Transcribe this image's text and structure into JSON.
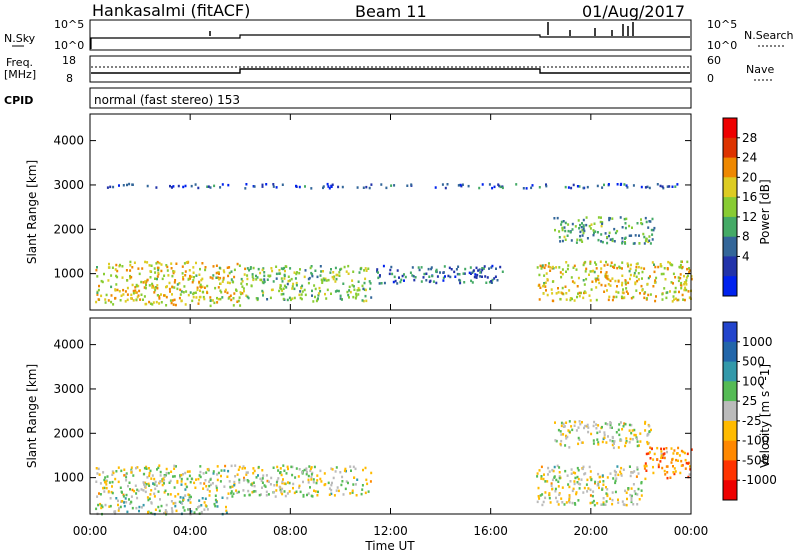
{
  "header": {
    "station": "Hankasalmi (fitACF)",
    "beam": "Beam 11",
    "date": "01/Aug/2017"
  },
  "panels": {
    "noise": {
      "left_label": "N.Sky",
      "right_label": "N.Search",
      "left_ticks": [
        "10^5",
        "10^0"
      ],
      "right_ticks": [
        "10^5",
        "10^0"
      ]
    },
    "freq": {
      "left_label_1": "Freq.",
      "left_label_2": "[MHz]",
      "left_ticks": [
        "18",
        "8"
      ],
      "right_ticks": [
        "60",
        "0"
      ],
      "right_label": "Nave"
    },
    "cpid": {
      "label": "CPID",
      "value": "normal (fast stereo) 153"
    }
  },
  "colors": {
    "power": [
      "#0022ee",
      "#2233aa",
      "#336699",
      "#44aa66",
      "#88cc33",
      "#ddcc22",
      "#ee8800",
      "#dd3300",
      "#ee0000"
    ],
    "velocity": [
      "#2244cc",
      "#2266aa",
      "#3399aa",
      "#55bb55",
      "#bbbbbb",
      "#ffbb00",
      "#ff8800",
      "#ff3300",
      "#ee0000"
    ]
  },
  "chart_data": [
    {
      "type": "heatmap",
      "title": "",
      "xlabel": "Time UT",
      "ylabel": "Slant Range [km]",
      "x_ticks": [
        "00:00",
        "04:00",
        "08:00",
        "12:00",
        "16:00",
        "20:00",
        "00:00"
      ],
      "y_ticks": [
        1000,
        2000,
        3000,
        4000
      ],
      "xlim": [
        "00:00",
        "24:00"
      ],
      "ylim": [
        180,
        4600
      ],
      "colorbar": {
        "label": "Power [dB]",
        "ticks": [
          "28",
          "24",
          "20",
          "16",
          "12",
          "8",
          "4"
        ],
        "range": [
          0,
          30
        ]
      },
      "scatter_regions": [
        {
          "x": [
            0.2,
            6.2
          ],
          "y": [
            300,
            1300
          ],
          "value": 18
        },
        {
          "x": [
            6.2,
            11.2
          ],
          "y": [
            400,
            1200
          ],
          "value": 14
        },
        {
          "x": [
            11.2,
            16.5
          ],
          "y": [
            800,
            1200
          ],
          "value": 8
        },
        {
          "x": [
            17.8,
            24.0
          ],
          "y": [
            400,
            1300
          ],
          "value": 18
        },
        {
          "x": [
            18.5,
            22.5
          ],
          "y": [
            1700,
            2300
          ],
          "value": 12
        },
        {
          "x": [
            0.5,
            23.5
          ],
          "y": [
            2950,
            3050
          ],
          "value": 6
        }
      ]
    },
    {
      "type": "heatmap",
      "title": "",
      "xlabel": "Time UT",
      "ylabel": "Slant Range [km]",
      "x_ticks": [
        "00:00",
        "04:00",
        "08:00",
        "12:00",
        "16:00",
        "20:00",
        "00:00"
      ],
      "y_ticks": [
        1000,
        2000,
        3000,
        4000
      ],
      "xlim": [
        "00:00",
        "24:00"
      ],
      "ylim": [
        180,
        4600
      ],
      "colorbar": {
        "label": "Velocity [m s^-1]",
        "ticks": [
          "1000",
          "500",
          "100",
          "25",
          "-25",
          "-100",
          "-500",
          "-1000"
        ],
        "range": [
          -1000,
          1000
        ]
      },
      "scatter_regions": [
        {
          "x": [
            0.2,
            5.5
          ],
          "y": [
            200,
            600
          ],
          "value": 100
        },
        {
          "x": [
            0.2,
            11.2
          ],
          "y": [
            600,
            1300
          ],
          "value": 0
        },
        {
          "x": [
            17.8,
            22.0
          ],
          "y": [
            400,
            1300
          ],
          "value": 0
        },
        {
          "x": [
            22.0,
            24.0
          ],
          "y": [
            1000,
            1700
          ],
          "value": -400
        },
        {
          "x": [
            18.5,
            22.5
          ],
          "y": [
            1700,
            2300
          ],
          "value": 0
        }
      ]
    }
  ]
}
